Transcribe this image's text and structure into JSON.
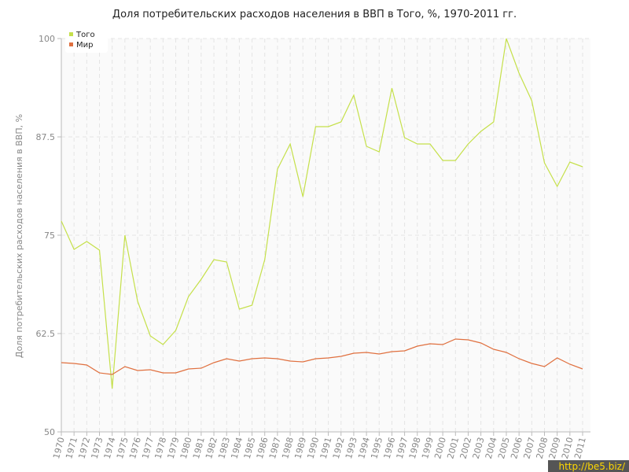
{
  "chart_data": {
    "type": "line",
    "title": "Доля потребительских расходов населения в ВВП в Того, %, 1970-2011 гг.",
    "y_label": "Доля потребительских расходов населения в ВВП, %",
    "watermark": "http://be5.biz/",
    "x": [
      1970,
      1971,
      1972,
      1973,
      1974,
      1975,
      1976,
      1977,
      1978,
      1979,
      1980,
      1981,
      1982,
      1983,
      1984,
      1985,
      1986,
      1987,
      1988,
      1989,
      1990,
      1991,
      1992,
      1993,
      1994,
      1995,
      1996,
      1997,
      1998,
      1999,
      2000,
      2001,
      2002,
      2003,
      2004,
      2005,
      2006,
      2007,
      2008,
      2009,
      2010,
      2011
    ],
    "xlim": [
      1970,
      2011
    ],
    "ylim": [
      50,
      100
    ],
    "yticks": [
      50,
      62.5,
      75,
      87.5,
      100
    ],
    "grid": true,
    "legend": "upper-left",
    "series": [
      {
        "name": "Того",
        "color": "#c5e04a",
        "values": [
          76.8,
          73.2,
          74.2,
          73.1,
          55.5,
          75.0,
          66.6,
          62.2,
          61.1,
          62.9,
          67.2,
          69.4,
          71.9,
          71.6,
          65.6,
          66.1,
          71.9,
          83.4,
          86.6,
          79.9,
          88.8,
          88.8,
          89.4,
          92.8,
          86.3,
          85.6,
          93.7,
          87.4,
          86.6,
          86.6,
          84.5,
          84.5,
          86.6,
          88.2,
          89.4,
          100.0,
          95.6,
          92.1,
          84.2,
          81.2,
          84.3,
          83.7
        ]
      },
      {
        "name": "Мир",
        "color": "#e0703f",
        "values": [
          58.8,
          58.7,
          58.5,
          57.5,
          57.3,
          58.3,
          57.8,
          57.9,
          57.5,
          57.5,
          58.0,
          58.1,
          58.8,
          59.3,
          59.0,
          59.3,
          59.4,
          59.3,
          59.0,
          58.9,
          59.3,
          59.4,
          59.6,
          60.0,
          60.1,
          59.9,
          60.2,
          60.3,
          60.9,
          61.2,
          61.1,
          61.8,
          61.7,
          61.3,
          60.5,
          60.1,
          59.3,
          58.7,
          58.3,
          59.4,
          58.6,
          58.0
        ]
      }
    ]
  }
}
